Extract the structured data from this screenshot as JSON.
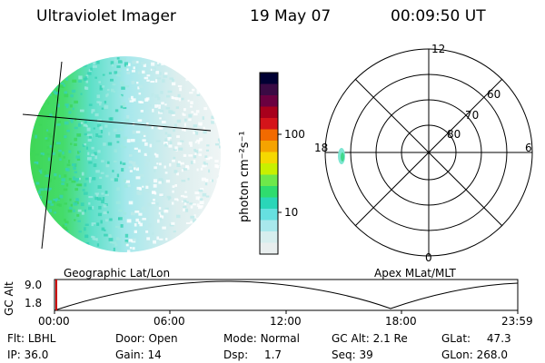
{
  "header": {
    "instrument": "Ultraviolet Imager",
    "date": "19 May 07",
    "time": "00:09:50 UT"
  },
  "globe": {
    "label": "Geographic Lat/Lon"
  },
  "colorbar": {
    "unit_label": "photon cm⁻²s⁻¹",
    "ticks": [
      "100",
      "10"
    ],
    "colors": [
      "#000033",
      "#3a0a44",
      "#6a0040",
      "#a8001c",
      "#d4141a",
      "#f26a00",
      "#f5a300",
      "#f5d800",
      "#c8f000",
      "#6ee84a",
      "#2fdc6e",
      "#2ad6b8",
      "#66e0e0",
      "#a8e8ec",
      "#d6eeee",
      "#e8eeee"
    ]
  },
  "polar": {
    "label": "Apex MLat/MLT",
    "mlt_labels": {
      "top": "12",
      "left": "18",
      "right": "6",
      "bottom": "0"
    },
    "lat_labels": [
      "60",
      "70",
      "80"
    ]
  },
  "altitude_plot": {
    "ylabel": "GC Alt",
    "yticks": [
      "9.0",
      "1.8"
    ],
    "xticks": [
      "00:00",
      "06:00",
      "12:00",
      "18:00",
      "23:59"
    ],
    "marker_color": "#cc0000"
  },
  "status": {
    "row1": [
      {
        "label": "Flt:",
        "value": "LBHL"
      },
      {
        "label": "Door:",
        "value": "Open"
      },
      {
        "label": "Mode:",
        "value": "Normal"
      },
      {
        "label": "GC Alt:",
        "value": "2.1 Re"
      },
      {
        "label": "GLat:",
        "value": "47.3"
      }
    ],
    "row2": [
      {
        "label": "IP:",
        "value": "36.0"
      },
      {
        "label": "Gain:",
        "value": "14"
      },
      {
        "label": "Dsp:",
        "value": "1.7"
      },
      {
        "label": "Seq:",
        "value": "39"
      },
      {
        "label": "GLon:",
        "value": "268.0"
      }
    ]
  }
}
